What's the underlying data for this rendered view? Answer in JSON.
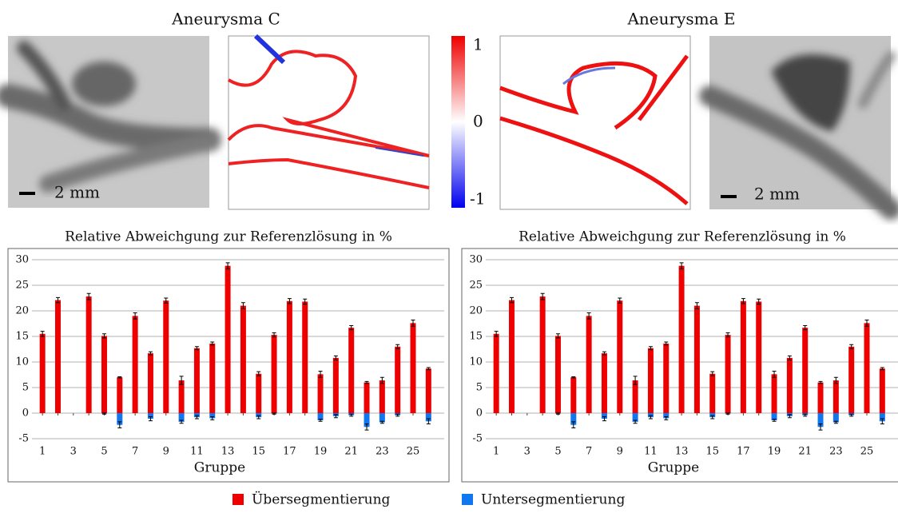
{
  "images": {
    "titles": [
      "Aneurysma C",
      "Aneurysma E"
    ],
    "scale_labels": [
      "2 mm",
      "2 mm"
    ],
    "colorbar_ticks": [
      1,
      0,
      -1
    ]
  },
  "chart_data": [
    {
      "type": "bar",
      "title": "Relative Abweichgung zur Referenzlösung in %",
      "x_label": "Gruppe",
      "categories": [
        "1",
        null,
        "3",
        null,
        "5",
        null,
        "7",
        null,
        "9",
        null,
        "11",
        null,
        "13",
        null,
        "15",
        null,
        "17",
        null,
        "19",
        null,
        "21",
        null,
        "23",
        null,
        "25",
        null
      ],
      "series": [
        {
          "name": "Übersegmentierung",
          "color": "#ee0000",
          "values": [
            15.5,
            22.1,
            0,
            22.8,
            15.1,
            7.0,
            19.0,
            11.7,
            22.0,
            6.4,
            12.7,
            13.6,
            28.8,
            21.0,
            7.7,
            15.3,
            21.9,
            21.8,
            7.6,
            10.8,
            16.7,
            6.0,
            6.4,
            13.0,
            17.6,
            8.7
          ],
          "errors": [
            0.5,
            0.5,
            0,
            0.6,
            0.4,
            0.1,
            0.6,
            0.3,
            0.5,
            0.8,
            0.3,
            0.3,
            0.6,
            0.6,
            0.4,
            0.4,
            0.5,
            0.5,
            0.6,
            0.4,
            0.4,
            0.2,
            0.6,
            0.4,
            0.6,
            0.2
          ]
        },
        {
          "name": "Untersegmentierung",
          "color": "#1177ee",
          "values": [
            0,
            0,
            0,
            0,
            -0.1,
            -2.3,
            0,
            -1.1,
            0,
            -1.7,
            -0.8,
            -1.0,
            0,
            0,
            -0.8,
            -0.1,
            0,
            0,
            -1.4,
            -0.6,
            -0.4,
            -2.7,
            -1.8,
            -0.4,
            0,
            -1.6
          ],
          "errors": [
            0,
            0,
            0,
            0,
            0.1,
            0.6,
            0,
            0.4,
            0,
            0.3,
            0.3,
            0.3,
            0,
            0,
            0.3,
            0.1,
            0,
            0,
            0.2,
            0.3,
            0.2,
            0.6,
            0.2,
            0.2,
            0,
            0.5
          ]
        }
      ],
      "ylim": [
        -5,
        30
      ],
      "yticks": [
        -5,
        0,
        5,
        10,
        15,
        20,
        25,
        30
      ],
      "grid": true
    },
    {
      "type": "bar",
      "title": "Relative Abweichgung zur Referenzlösung in %",
      "x_label": "Gruppe",
      "categories": [
        "1",
        null,
        "3",
        null,
        "5",
        null,
        "7",
        null,
        "9",
        null,
        "11",
        null,
        "13",
        null,
        "15",
        null,
        "17",
        null,
        "19",
        null,
        "21",
        null,
        "23",
        null,
        "25",
        null
      ],
      "series": [
        {
          "name": "Übersegmentierung",
          "color": "#ee0000",
          "values": [
            15.5,
            22.1,
            0,
            22.8,
            15.1,
            7.0,
            19.0,
            11.7,
            22.0,
            6.4,
            12.7,
            13.6,
            28.8,
            21.0,
            7.7,
            15.3,
            21.9,
            21.8,
            7.6,
            10.8,
            16.7,
            6.0,
            6.4,
            13.0,
            17.6,
            8.7
          ],
          "errors": [
            0.5,
            0.5,
            0,
            0.6,
            0.4,
            0.1,
            0.6,
            0.3,
            0.5,
            0.8,
            0.3,
            0.3,
            0.6,
            0.6,
            0.4,
            0.4,
            0.5,
            0.5,
            0.6,
            0.4,
            0.4,
            0.2,
            0.6,
            0.4,
            0.6,
            0.2
          ]
        },
        {
          "name": "Untersegmentierung",
          "color": "#1177ee",
          "values": [
            0,
            0,
            0,
            0,
            -0.1,
            -2.3,
            0,
            -1.1,
            0,
            -1.7,
            -0.8,
            -1.0,
            0,
            0,
            -0.8,
            -0.1,
            0,
            0,
            -1.4,
            -0.6,
            -0.4,
            -2.7,
            -1.8,
            -0.4,
            0,
            -1.6
          ],
          "errors": [
            0,
            0,
            0,
            0,
            0.1,
            0.6,
            0,
            0.4,
            0,
            0.3,
            0.3,
            0.3,
            0,
            0,
            0.3,
            0.1,
            0,
            0,
            0.2,
            0.3,
            0.2,
            0.6,
            0.2,
            0.2,
            0,
            0.5
          ]
        }
      ],
      "ylim": [
        -5,
        30
      ],
      "yticks": [
        -5,
        0,
        5,
        10,
        15,
        20,
        25,
        30
      ],
      "grid": true
    }
  ]
}
